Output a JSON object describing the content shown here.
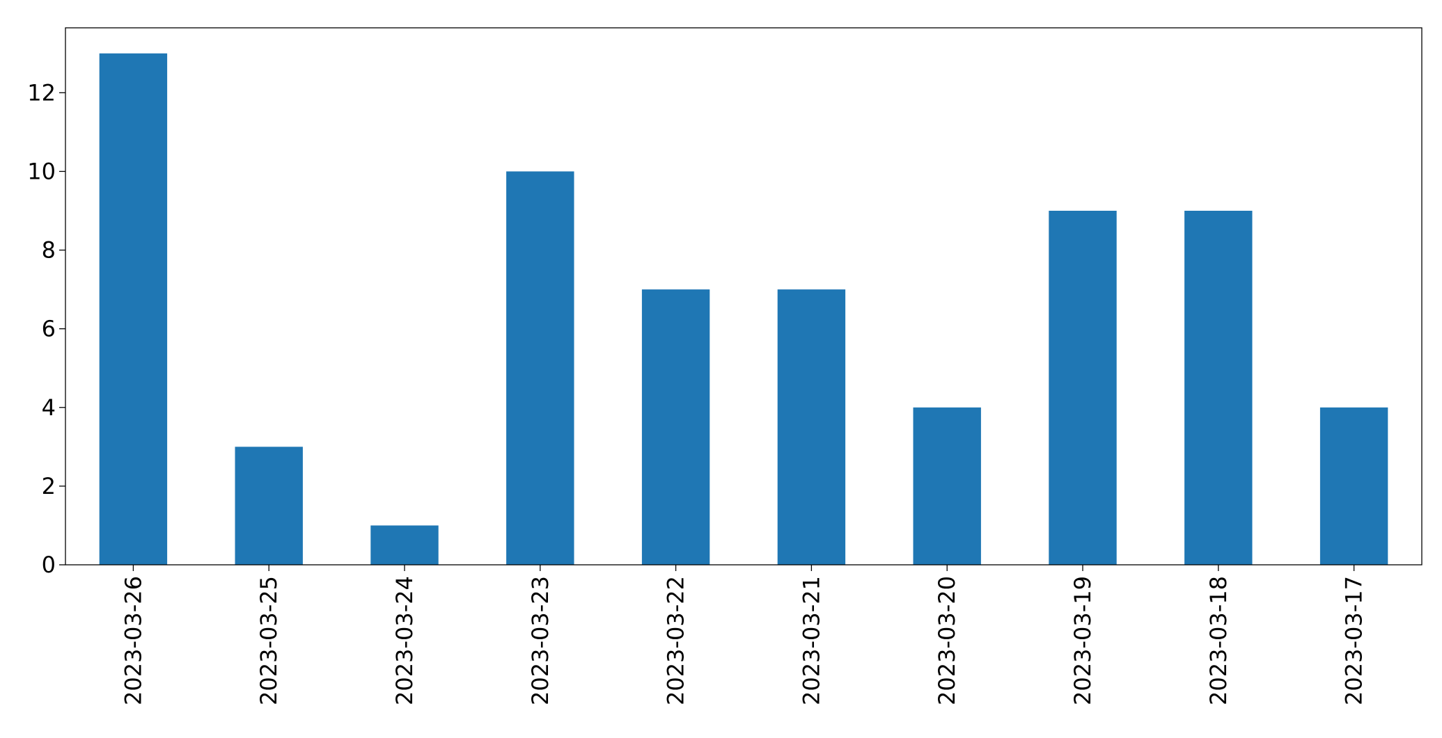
{
  "chart_data": {
    "type": "bar",
    "categories": [
      "2023-03-26",
      "2023-03-25",
      "2023-03-24",
      "2023-03-23",
      "2023-03-22",
      "2023-03-21",
      "2023-03-20",
      "2023-03-19",
      "2023-03-18",
      "2023-03-17"
    ],
    "values": [
      13,
      3,
      1,
      10,
      7,
      7,
      4,
      9,
      9,
      4
    ],
    "color": "#1f77b4",
    "ylim": [
      0,
      13.65
    ],
    "yticks": [
      0,
      2,
      4,
      6,
      8,
      10,
      12
    ],
    "grid": false
  }
}
